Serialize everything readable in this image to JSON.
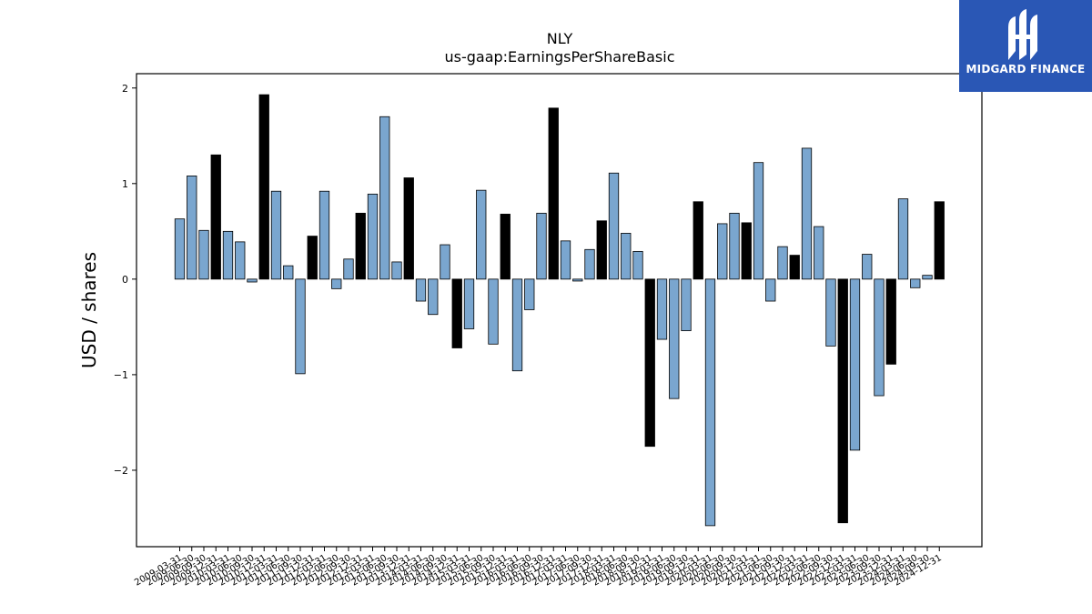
{
  "brand": {
    "name": "MIDGARD FINANCE",
    "logo_icon": "midgard-finance-logo-icon",
    "color": "#2a57b5"
  },
  "chart_data": {
    "type": "bar",
    "title": "NLY",
    "subtitle": "us-gaap:EarningsPerShareBasic",
    "xlabel": "",
    "ylabel": "USD / shares",
    "ylim": [
      -2.8,
      2.15
    ],
    "yticks": [
      -2,
      -1,
      0,
      1,
      2
    ],
    "grid": false,
    "legend": "none",
    "colors": {
      "q1_q3": "#7aa6cf",
      "q4": "#000000"
    },
    "categories": [
      "2009-03-31",
      "2009-06-30",
      "2009-09-30",
      "2009-12-31",
      "2010-03-31",
      "2010-06-30",
      "2010-09-30",
      "2010-12-31",
      "2011-03-31",
      "2011-06-30",
      "2011-09-30",
      "2011-12-31",
      "2012-03-31",
      "2012-06-30",
      "2012-09-30",
      "2012-12-31",
      "2013-03-31",
      "2013-06-30",
      "2013-09-30",
      "2013-12-31",
      "2014-03-31",
      "2014-06-30",
      "2014-09-30",
      "2014-12-31",
      "2015-03-31",
      "2015-06-30",
      "2015-09-30",
      "2015-12-31",
      "2016-03-31",
      "2016-06-30",
      "2016-09-30",
      "2016-12-31",
      "2017-03-31",
      "2017-06-30",
      "2017-09-30",
      "2017-12-31",
      "2018-03-31",
      "2018-06-30",
      "2018-09-30",
      "2018-12-31",
      "2019-03-31",
      "2019-06-30",
      "2019-09-30",
      "2019-12-31",
      "2020-03-31",
      "2020-06-30",
      "2020-09-30",
      "2020-12-31",
      "2021-03-31",
      "2021-06-30",
      "2021-09-30",
      "2021-12-31",
      "2022-03-31",
      "2022-06-30",
      "2022-09-30",
      "2022-12-31",
      "2023-03-31",
      "2023-06-30",
      "2023-09-30",
      "2023-12-31",
      "2024-03-31",
      "2024-06-30",
      "2024-09-30",
      "2024-12-31"
    ],
    "values": [
      0.63,
      1.08,
      0.51,
      1.3,
      0.5,
      0.39,
      -0.03,
      1.93,
      0.92,
      0.14,
      -0.99,
      0.45,
      0.92,
      -0.1,
      0.21,
      0.69,
      0.89,
      1.7,
      0.18,
      1.06,
      -0.23,
      -0.37,
      0.36,
      -0.72,
      -0.52,
      0.93,
      -0.68,
      0.68,
      -0.96,
      -0.32,
      0.69,
      1.79,
      0.4,
      -0.02,
      0.31,
      0.61,
      1.11,
      0.48,
      0.29,
      -1.75,
      -0.63,
      -1.25,
      -0.54,
      0.81,
      -2.58,
      0.58,
      0.69,
      0.59,
      1.22,
      -0.23,
      0.34,
      0.25,
      1.37,
      0.55,
      -0.7,
      -2.55,
      -1.79,
      0.26,
      -1.22,
      -0.89,
      0.84,
      -0.09,
      0.04,
      0.81
    ]
  }
}
